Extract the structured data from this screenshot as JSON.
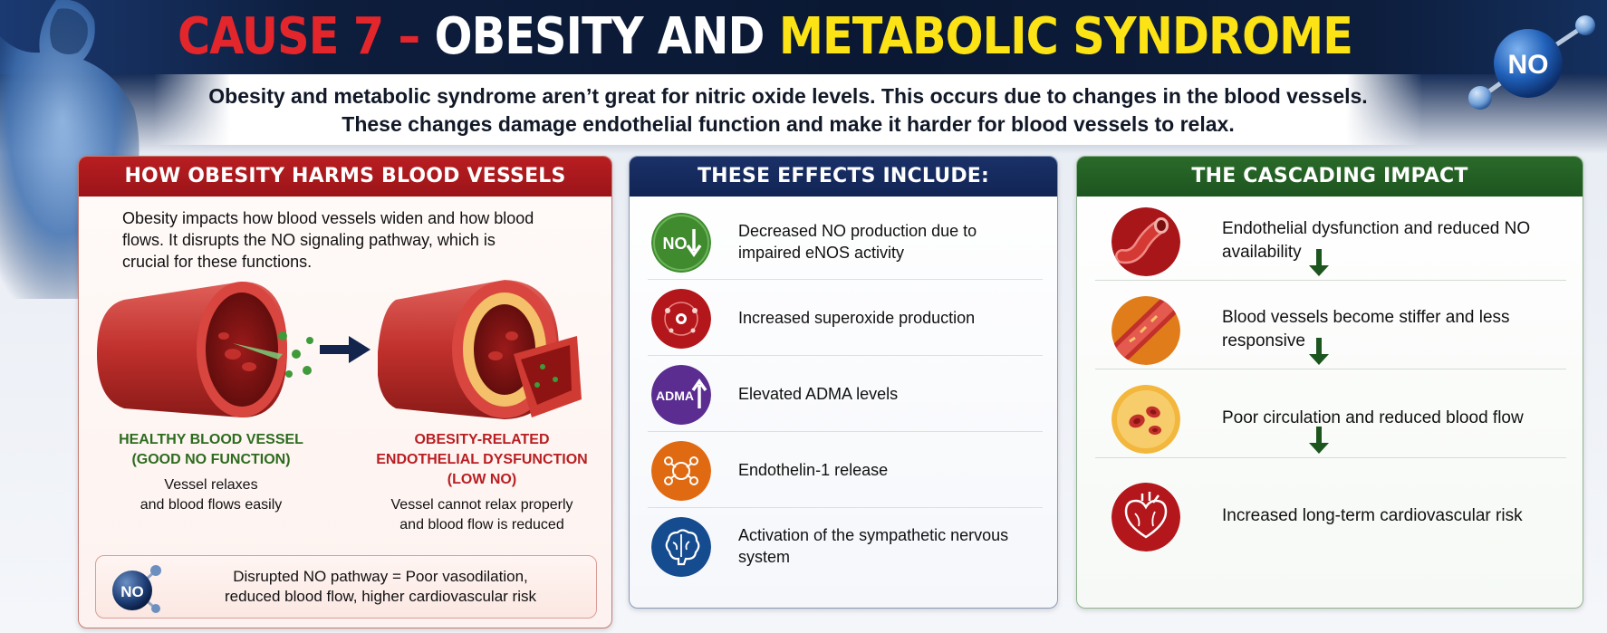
{
  "header": {
    "title_part1": "CAUSE 7 – ",
    "title_part2": "OBESITY AND ",
    "title_part3": "METABOLIC SYNDROME",
    "subtitle_line1": "Obesity and metabolic syndrome aren’t great for nitric oxide levels. This occurs due to changes in the blood vessels.",
    "subtitle_line2": "These changes damage endothelial function and make it harder for blood vessels to relax.",
    "badge": "NO"
  },
  "panel_left": {
    "heading": "HOW OBESITY HARMS BLOOD VESSELS",
    "intro": "Obesity impacts how blood vessels widen and how blood flows. It disrupts the NO signaling pathway, which is crucial for these functions.",
    "healthy_caption_1": "HEALTHY BLOOD VESSEL",
    "healthy_caption_2": "(GOOD NO FUNCTION)",
    "healthy_desc_1": "Vessel relaxes",
    "healthy_desc_2": "and blood flows easily",
    "damaged_caption_1": "OBESITY-RELATED",
    "damaged_caption_2": "ENDOTHELIAL DYSFUNCTION",
    "damaged_caption_3": "(LOW NO)",
    "damaged_desc_1": "Vessel cannot relax properly",
    "damaged_desc_2": "and blood flow is reduced",
    "summary_badge": "NO",
    "summary_1": "Disrupted NO pathway = Poor vasodilation,",
    "summary_2": "reduced blood flow, higher cardiovascular risk"
  },
  "panel_middle": {
    "heading": "THESE EFFECTS INCLUDE:",
    "items": [
      {
        "text": "Decreased NO production due to impaired eNOS activity",
        "icon": "no-decrease-icon",
        "icon_label": "NO",
        "color": "#3f8b2e"
      },
      {
        "text": "Increased superoxide production",
        "icon": "superoxide-icon",
        "color": "#b3171b"
      },
      {
        "text": "Elevated ADMA levels",
        "icon": "adma-increase-icon",
        "icon_label": "ADMA",
        "color": "#5b2d91"
      },
      {
        "text": "Endothelin-1 release",
        "icon": "endothelin-icon",
        "color": "#e06a12"
      },
      {
        "text": "Activation of the sympathetic nervous system",
        "icon": "brain-icon",
        "color": "#154b8f"
      }
    ]
  },
  "panel_right": {
    "heading": "THE CASCADING IMPACT",
    "items": [
      {
        "text": "Endothelial dysfunction and reduced NO availability",
        "icon": "vessel-icon"
      },
      {
        "text": "Blood vessels become stiffer and less responsive",
        "icon": "stiff-vessel-icon"
      },
      {
        "text": "Poor circulation and reduced blood flow",
        "icon": "blood-cells-icon"
      },
      {
        "text": "Increased long-term cardiovascular risk",
        "icon": "heart-icon"
      }
    ]
  }
}
